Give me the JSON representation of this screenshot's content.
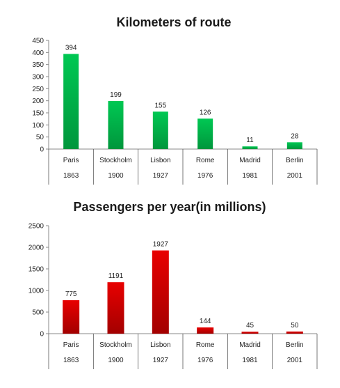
{
  "chart_data": [
    {
      "type": "bar",
      "title": "Kilometers of route",
      "categories": [
        "Paris",
        "Stockholm",
        "Lisbon",
        "Rome",
        "Madrid",
        "Berlin"
      ],
      "years": [
        "1863",
        "1900",
        "1927",
        "1976",
        "1981",
        "2001"
      ],
      "values": [
        394,
        199,
        155,
        126,
        11,
        28
      ],
      "ylim": [
        0,
        450
      ],
      "yticks": [
        0,
        50,
        100,
        150,
        200,
        250,
        300,
        350,
        400,
        450
      ],
      "xlabel": "",
      "ylabel": "",
      "bar_color": "#00b050",
      "bar_color_dark": "#008a3a"
    },
    {
      "type": "bar",
      "title": "Passengers per year(in millions)",
      "categories": [
        "Paris",
        "Stockholm",
        "Lisbon",
        "Rome",
        "Madrid",
        "Berlin"
      ],
      "years": [
        "1863",
        "1900",
        "1927",
        "1976",
        "1981",
        "2001"
      ],
      "values": [
        775,
        1191,
        1927,
        144,
        45,
        50
      ],
      "ylim": [
        0,
        2500
      ],
      "yticks": [
        0,
        500,
        1000,
        1500,
        2000,
        2500
      ],
      "xlabel": "",
      "ylabel": "",
      "bar_color": "#e00000",
      "bar_color_dark": "#a00000"
    }
  ]
}
